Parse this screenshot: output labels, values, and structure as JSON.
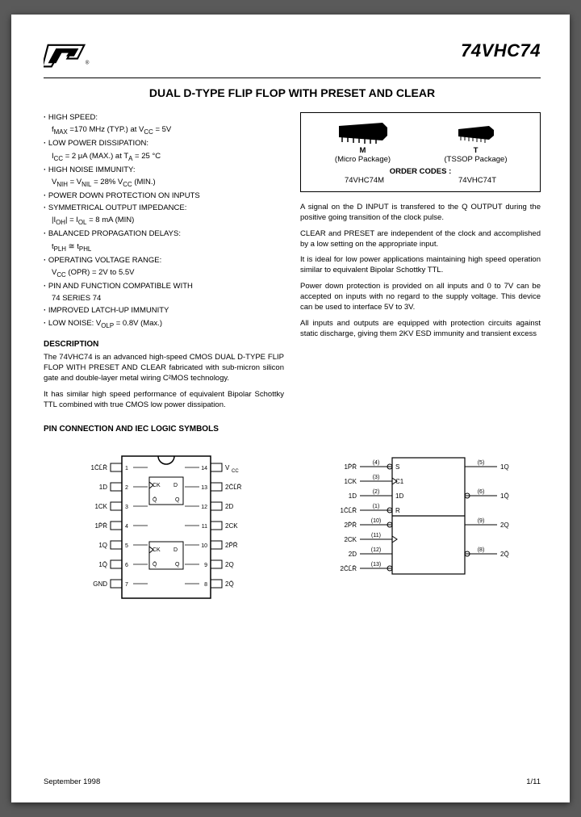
{
  "header": {
    "part_number": "74VHC74"
  },
  "title": "DUAL D-TYPE FLIP FLOP WITH PRESET AND CLEAR",
  "features": [
    {
      "main": "HIGH SPEED:",
      "sub": "f<sub>MAX</sub> =170 MHz (TYP.) at V<sub>CC</sub> = 5V"
    },
    {
      "main": "LOW POWER DISSIPATION:",
      "sub": "I<sub>CC</sub> = 2 μA (MAX.) at T<sub>A</sub> = 25 °C"
    },
    {
      "main": "HIGH NOISE IMMUNITY:",
      "sub": "V<sub>NIH</sub> = V<sub>NIL</sub> = 28% V<sub>CC</sub> (MIN.)"
    },
    {
      "main": "POWER DOWN PROTECTION ON  INPUTS"
    },
    {
      "main": "SYMMETRICAL OUTPUT IMPEDANCE:",
      "sub": "|I<sub>OH</sub>| = I<sub>OL</sub> = 8 mA (MIN)"
    },
    {
      "main": "BALANCED PROPAGATION DELAYS:",
      "sub": "t<sub>PLH</sub> ≅ t<sub>PHL</sub>"
    },
    {
      "main": "OPERATING VOLTAGE RANGE:",
      "sub": "V<sub>CC</sub> (OPR) = 2V to 5.5V"
    },
    {
      "main": "PIN AND FUNCTION COMPATIBLE WITH",
      "sub": "74 SERIES 74"
    },
    {
      "main": "IMPROVED LATCH-UP IMMUNITY"
    },
    {
      "main": "LOW NOISE: V<sub>OLP</sub> = 0.8V (Max.)"
    }
  ],
  "description_heading": "DESCRIPTION",
  "description": [
    "The 74VHC74 is an advanced high-speed CMOS DUAL D-TYPE FLIP FLOP WITH PRESET AND CLEAR fabricated with sub-micron silicon gate and double-layer metal wiring C²MOS technology.",
    "It has similar high speed performance of equivalent Bipolar Schottky TTL combined with true CMOS low power dissipation."
  ],
  "packages": {
    "m": {
      "code": "M",
      "desc": "(Micro Package)"
    },
    "t": {
      "code": "T",
      "desc": "(TSSOP Package)"
    },
    "order_heading": "ORDER CODES :",
    "order_m": "74VHC74M",
    "order_t": "74VHC74T"
  },
  "right_paragraphs": [
    "A signal on the D INPUT is transfered to the Q OUTPUT during the positive going transition of the clock pulse.",
    "CLEAR and PRESET are independent of the clock and accomplished by a low setting on the appropriate input.",
    "It is ideal for low power applications maintaining high speed operation similar to equivalent Bipolar Schottky TTL.",
    "Power down protection is provided on all inputs and 0 to 7V can be accepted on inputs with no regard to the supply voltage. This device can be used to interface 5V to 3V.",
    "All inputs and outputs are equipped with protection circuits against static discharge, giving them 2KV ESD immunity and transient excess"
  ],
  "pin_heading": "PIN CONNECTION AND IEC LOGIC SYMBOLS",
  "pin_diagram": {
    "left_pins": [
      "1C̄L̄R̄",
      "1D",
      "1CK",
      "1P̄R̄",
      "1Q",
      "1Q̄",
      "GND"
    ],
    "right_pins": [
      "V_CC",
      "2C̄L̄R̄",
      "2D",
      "2CK",
      "2P̄R̄",
      "2Q",
      "2Q̄"
    ],
    "left_nums": [
      1,
      2,
      3,
      4,
      5,
      6,
      7
    ],
    "right_nums": [
      14,
      13,
      12,
      11,
      10,
      9,
      8
    ]
  },
  "iec_diagram": {
    "left_labels": [
      {
        "txt": "1P̄R̄",
        "num": "4",
        "port": "S"
      },
      {
        "txt": "1CK",
        "num": "3",
        "port": "C1"
      },
      {
        "txt": "1D",
        "num": "2",
        "port": "1D"
      },
      {
        "txt": "1C̄L̄R̄",
        "num": "1",
        "port": "R"
      },
      {
        "txt": "2P̄R̄",
        "num": "10",
        "port": ""
      },
      {
        "txt": "2CK",
        "num": "11",
        "port": ""
      },
      {
        "txt": "2D",
        "num": "12",
        "port": ""
      },
      {
        "txt": "2C̄L̄R̄",
        "num": "13",
        "port": ""
      }
    ],
    "right_labels": [
      {
        "num": "5",
        "txt": "1Q"
      },
      {
        "num": "6",
        "txt": "1Q̄"
      },
      {
        "num": "9",
        "txt": "2Q"
      },
      {
        "num": "8",
        "txt": "2Q̄"
      }
    ]
  },
  "footer": {
    "date": "September 1998",
    "page": "1/11"
  },
  "colors": {
    "line": "#000000",
    "bg": "#ffffff"
  }
}
